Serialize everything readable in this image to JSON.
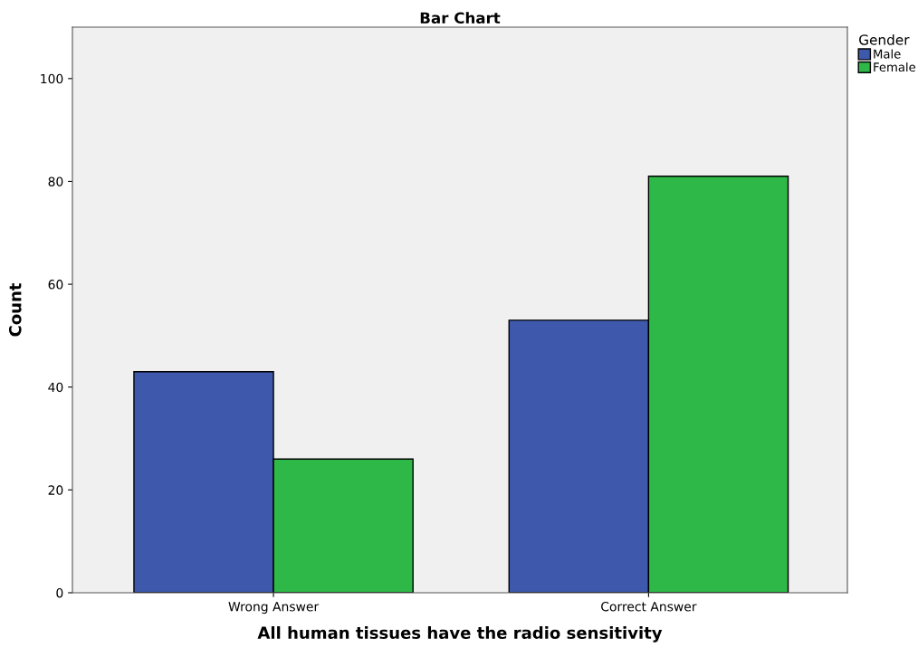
{
  "chart_data": {
    "type": "bar",
    "title": "Bar Chart",
    "xlabel": "All human tissues have the radio sensitivity",
    "ylabel": "Count",
    "categories": [
      "Wrong Answer",
      "Correct Answer"
    ],
    "series": [
      {
        "name": "Male",
        "color": "#3e58ac",
        "values": [
          43,
          53
        ]
      },
      {
        "name": "Female",
        "color": "#2eb848",
        "values": [
          26,
          81
        ]
      }
    ],
    "ylim": [
      0,
      110
    ],
    "yticks": [
      0,
      20,
      40,
      60,
      80,
      100
    ],
    "grid": false,
    "legend": "top right",
    "legend_title": "Gender"
  }
}
